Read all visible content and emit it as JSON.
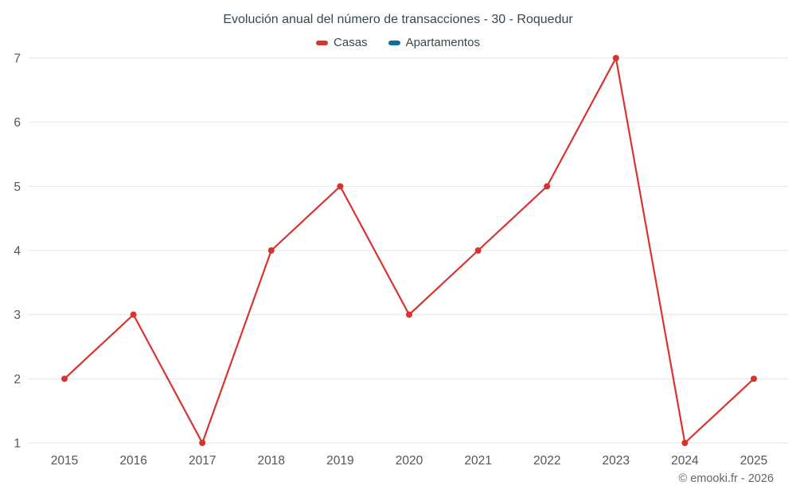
{
  "title": "Evolución anual del número de transacciones - 30 - Roquedur",
  "legend": {
    "items": [
      {
        "label": "Casas",
        "color": "#d8342f"
      },
      {
        "label": "Apartamentos",
        "color": "#146c94"
      }
    ]
  },
  "footer": {
    "credit": "© emooki.fr - 2026"
  },
  "chart_data": {
    "type": "line",
    "x": [
      2015,
      2016,
      2017,
      2018,
      2019,
      2020,
      2021,
      2022,
      2023,
      2024,
      2025
    ],
    "series": [
      {
        "name": "Casas",
        "color": "#d8342f",
        "values": [
          2,
          3,
          1,
          4,
          5,
          3,
          4,
          5,
          7,
          1,
          2
        ]
      },
      {
        "name": "Apartamentos",
        "color": "#146c94",
        "values": []
      }
    ],
    "title": "Evolución anual del número de transacciones - 30 - Roquedur",
    "xlabel": "",
    "ylabel": "",
    "ylim": [
      1,
      7
    ],
    "yticks": [
      1,
      2,
      3,
      4,
      5,
      6,
      7
    ],
    "grid": true,
    "grid_color": "#e6e6e6",
    "legend_position": "top",
    "tick_label_color": "#555555"
  }
}
